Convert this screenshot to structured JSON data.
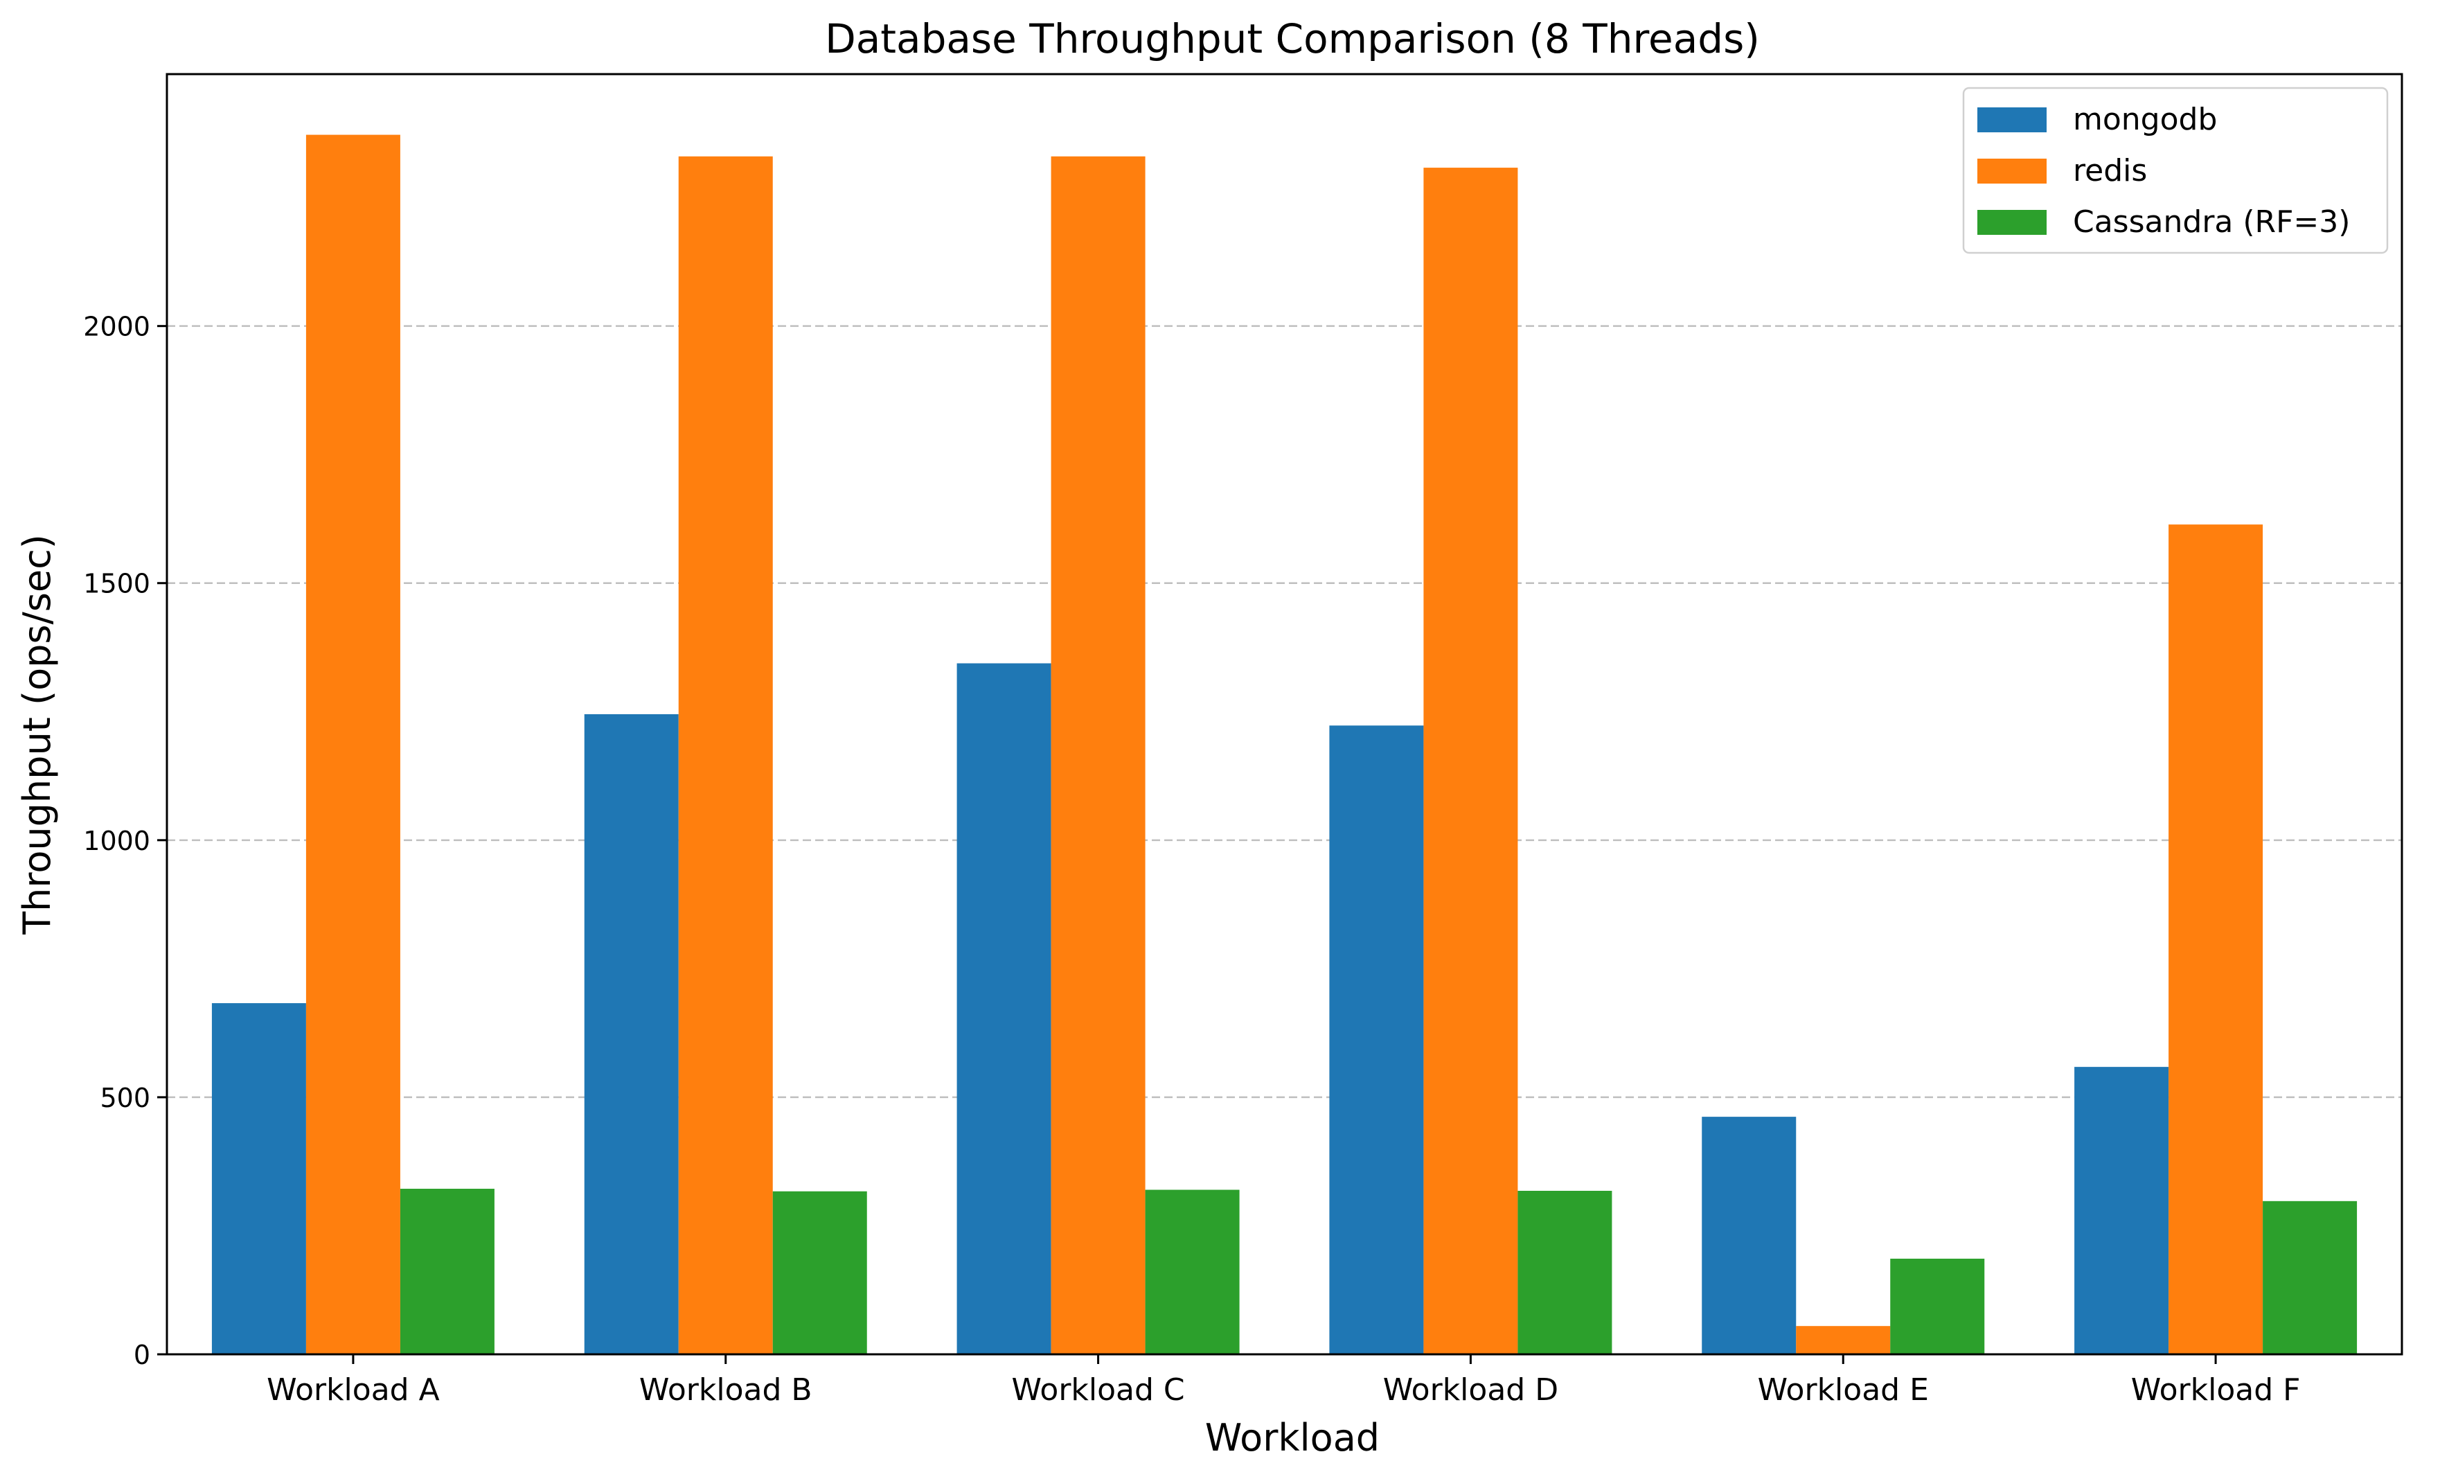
{
  "chart_data": {
    "type": "bar",
    "title": "Database Throughput Comparison (8 Threads)",
    "xlabel": "Workload",
    "ylabel": "Throughput (ops/sec)",
    "categories": [
      "Workload A",
      "Workload B",
      "Workload C",
      "Workload D",
      "Workload E",
      "Workload F"
    ],
    "series": [
      {
        "name": "mongodb",
        "color": "#1f77b4",
        "values": [
          683,
          1245,
          1344,
          1223,
          462,
          559
        ]
      },
      {
        "name": "redis",
        "color": "#ff7f0e",
        "values": [
          2372,
          2330,
          2330,
          2308,
          55,
          1614
        ]
      },
      {
        "name": "Cassandra (RF=3)",
        "color": "#2ca02c",
        "values": [
          322,
          317,
          320,
          318,
          186,
          298
        ]
      }
    ],
    "ylim": [
      0,
      2490
    ],
    "yticks": [
      0,
      500,
      1000,
      1500,
      2000
    ],
    "grid": "y-dashed",
    "legend_position": "top-right"
  }
}
